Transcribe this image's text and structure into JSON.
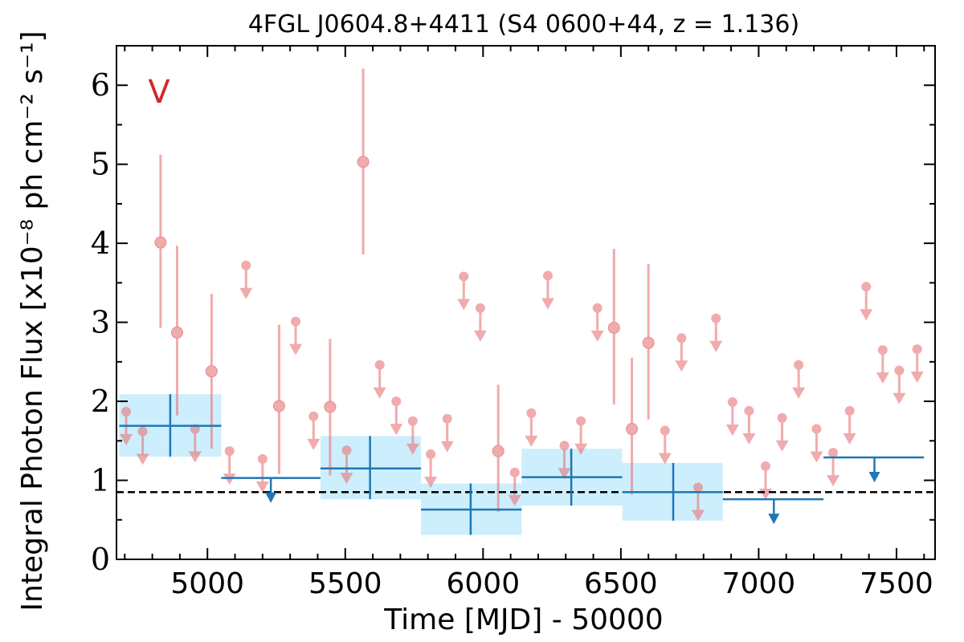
{
  "chart_data": {
    "type": "scatter",
    "title": "4FGL J0604.8+4411 (S4 0600+44, z = 1.136)",
    "band_label": "V",
    "xlabel": "Time [MJD] - 50000",
    "ylabel": "Integral Photon Flux [x10⁻⁸ ph cm⁻² s⁻¹]",
    "xlim": [
      4670,
      7640
    ],
    "ylim": [
      0,
      6.5
    ],
    "xticks": [
      5000,
      5500,
      6000,
      6500,
      7000,
      7500
    ],
    "yticks": [
      0,
      1,
      2,
      3,
      4,
      5,
      6
    ],
    "grid": false,
    "reference_line": {
      "y": 0.85,
      "style": "dashed",
      "color": "#000000"
    },
    "colors": {
      "short_bins": "#e8787c",
      "long_bins": "#1f77b4",
      "long_bins_band": "#cdeefc",
      "band_label": "#d62728"
    },
    "series": [
      {
        "name": "short",
        "points": [
          {
            "x": 4705,
            "y": 1.87,
            "ul": true
          },
          {
            "x": 4765,
            "y": 1.62,
            "ul": true
          },
          {
            "x": 4830,
            "y": 4.01,
            "err": [
              2.93,
              5.12
            ]
          },
          {
            "x": 4890,
            "y": 2.87,
            "err": [
              1.82,
              3.97
            ]
          },
          {
            "x": 4955,
            "y": 1.65,
            "ul": true
          },
          {
            "x": 5015,
            "y": 2.38,
            "err": [
              1.4,
              3.36
            ]
          },
          {
            "x": 5080,
            "y": 1.37,
            "ul": true
          },
          {
            "x": 5200,
            "y": 1.27,
            "ul": true
          },
          {
            "x": 5140,
            "y": 3.72,
            "ul": true
          },
          {
            "x": 5260,
            "y": 1.94,
            "err": [
              1.08,
              2.97
            ]
          },
          {
            "x": 5320,
            "y": 3.01,
            "ul": true
          },
          {
            "x": 5385,
            "y": 1.81,
            "ul": true
          },
          {
            "x": 5445,
            "y": 1.93,
            "err": [
              1.06,
              2.79
            ]
          },
          {
            "x": 5505,
            "y": 1.38,
            "ul": true
          },
          {
            "x": 5565,
            "y": 5.03,
            "err": [
              3.86,
              6.21
            ]
          },
          {
            "x": 5625,
            "y": 2.46,
            "ul": true
          },
          {
            "x": 5685,
            "y": 2.0,
            "ul": true
          },
          {
            "x": 5745,
            "y": 1.75,
            "ul": true
          },
          {
            "x": 5810,
            "y": 1.33,
            "ul": true
          },
          {
            "x": 5870,
            "y": 1.78,
            "ul": true
          },
          {
            "x": 5930,
            "y": 3.58,
            "ul": true
          },
          {
            "x": 5990,
            "y": 3.18,
            "ul": true
          },
          {
            "x": 6055,
            "y": 1.37,
            "err": [
              0.6,
              2.21
            ]
          },
          {
            "x": 6115,
            "y": 1.1,
            "ul": true
          },
          {
            "x": 6175,
            "y": 1.85,
            "ul": true
          },
          {
            "x": 6235,
            "y": 3.59,
            "ul": true
          },
          {
            "x": 6295,
            "y": 1.44,
            "ul": true
          },
          {
            "x": 6355,
            "y": 1.75,
            "ul": true
          },
          {
            "x": 6415,
            "y": 3.18,
            "ul": true
          },
          {
            "x": 6475,
            "y": 2.93,
            "err": [
              1.96,
              3.93
            ]
          },
          {
            "x": 6540,
            "y": 1.65,
            "err": [
              0.82,
              2.55
            ]
          },
          {
            "x": 6600,
            "y": 2.74,
            "err": [
              1.77,
              3.74
            ]
          },
          {
            "x": 6660,
            "y": 1.63,
            "ul": true
          },
          {
            "x": 6720,
            "y": 2.8,
            "ul": true
          },
          {
            "x": 6780,
            "y": 0.91,
            "ul": true
          },
          {
            "x": 6845,
            "y": 3.05,
            "ul": true
          },
          {
            "x": 6905,
            "y": 1.99,
            "ul": true
          },
          {
            "x": 6965,
            "y": 1.88,
            "ul": true
          },
          {
            "x": 7025,
            "y": 1.18,
            "ul": true
          },
          {
            "x": 7085,
            "y": 1.79,
            "ul": true
          },
          {
            "x": 7145,
            "y": 2.46,
            "ul": true
          },
          {
            "x": 7210,
            "y": 1.65,
            "ul": true
          },
          {
            "x": 7270,
            "y": 1.35,
            "ul": true
          },
          {
            "x": 7330,
            "y": 1.88,
            "ul": true
          },
          {
            "x": 7390,
            "y": 3.45,
            "ul": true
          },
          {
            "x": 7450,
            "y": 2.65,
            "ul": true
          },
          {
            "x": 7510,
            "y": 2.39,
            "ul": true
          },
          {
            "x": 7575,
            "y": 2.66,
            "ul": true
          }
        ]
      },
      {
        "name": "long",
        "points": [
          {
            "x0": 4680,
            "x1": 5050,
            "x": 4865,
            "y": 1.69,
            "err": [
              1.3,
              2.09
            ],
            "ul": false
          },
          {
            "x0": 5050,
            "x1": 5410,
            "x": 5230,
            "y": 1.03,
            "ul": true
          },
          {
            "x0": 5410,
            "x1": 5775,
            "x": 5590,
            "y": 1.15,
            "err": [
              0.76,
              1.56
            ],
            "ul": false
          },
          {
            "x0": 5775,
            "x1": 6140,
            "x": 5955,
            "y": 0.63,
            "err": [
              0.31,
              0.96
            ],
            "ul": false
          },
          {
            "x0": 6140,
            "x1": 6505,
            "x": 6320,
            "y": 1.04,
            "err": [
              0.68,
              1.4
            ],
            "ul": false
          },
          {
            "x0": 6505,
            "x1": 6870,
            "x": 6690,
            "y": 0.85,
            "err": [
              0.49,
              1.22
            ],
            "ul": false
          },
          {
            "x0": 6870,
            "x1": 7235,
            "x": 7055,
            "y": 0.76,
            "ul": true
          },
          {
            "x0": 7235,
            "x1": 7600,
            "x": 7420,
            "y": 1.29,
            "ul": true
          }
        ]
      }
    ]
  }
}
